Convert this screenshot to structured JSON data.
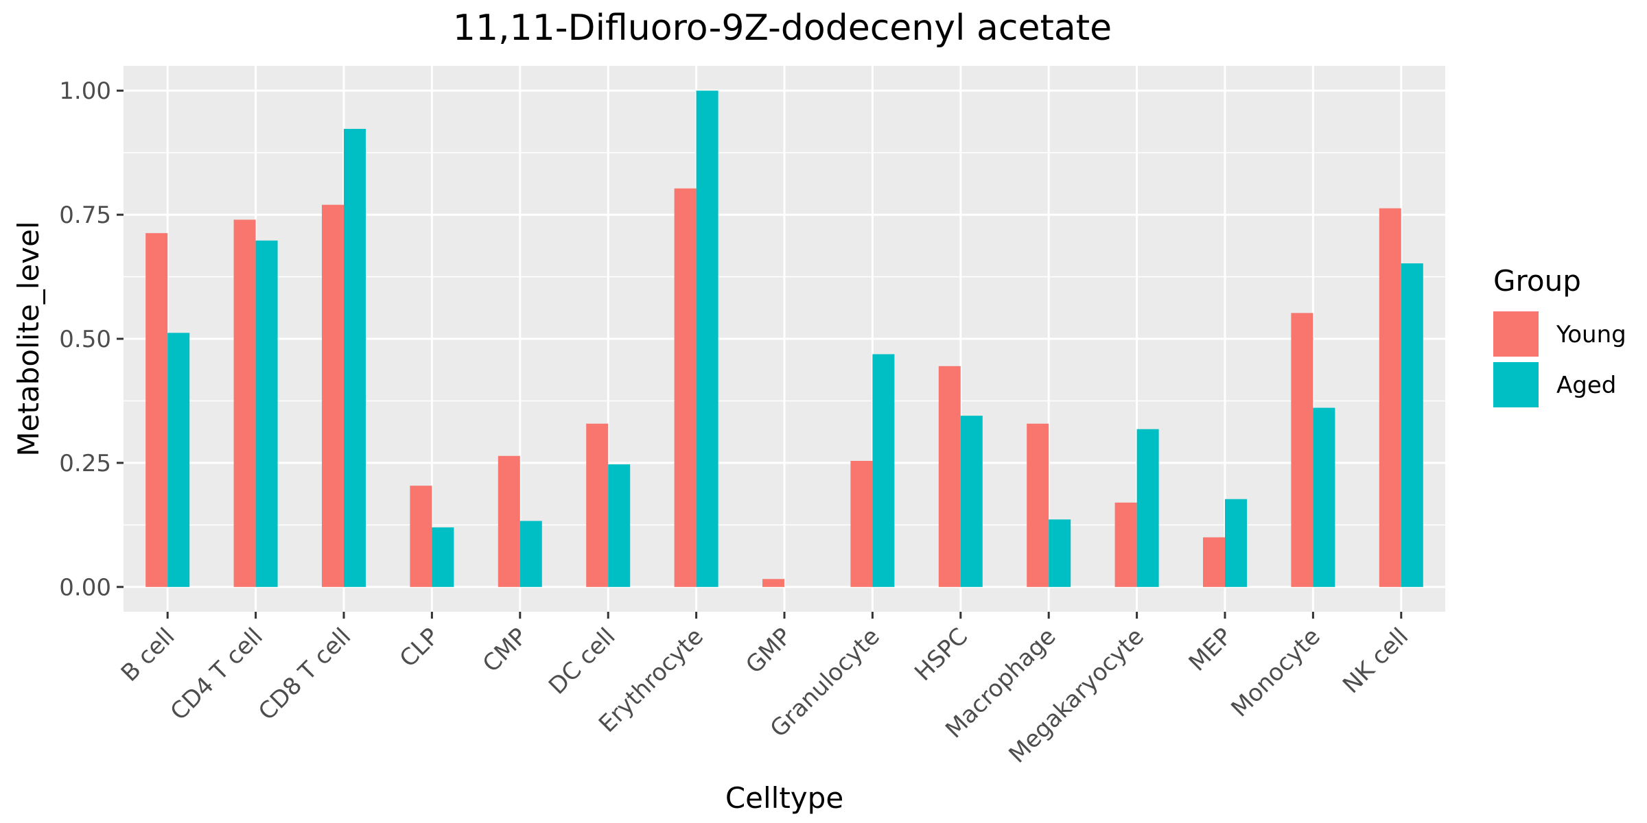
{
  "chart_data": {
    "type": "bar",
    "title": "11,11-Difluoro-9Z-dodecenyl acetate",
    "xlabel": "Celltype",
    "ylabel": "Metabolite_level",
    "ylim": [
      -0.05,
      1.05
    ],
    "yticks": [
      0.0,
      0.25,
      0.5,
      0.75,
      1.0
    ],
    "ytick_labels": [
      "0.00",
      "0.25",
      "0.50",
      "0.75",
      "1.00"
    ],
    "grid": true,
    "legend": {
      "title": "Group",
      "position": "right"
    },
    "categories": [
      "B cell",
      "CD4 T cell",
      "CD8 T cell",
      "CLP",
      "CMP",
      "DC cell",
      "Erythrocyte",
      "GMP",
      "Granulocyte",
      "HSPC",
      "Macrophage",
      "Megakaryocyte",
      "MEP",
      "Monocyte",
      "NK cell"
    ],
    "series": [
      {
        "name": "Young",
        "color": "#F8766D",
        "values": [
          0.713,
          0.74,
          0.77,
          0.204,
          0.264,
          0.329,
          0.803,
          0.016,
          0.254,
          0.445,
          0.329,
          0.17,
          0.1,
          0.552,
          0.763
        ]
      },
      {
        "name": "Aged",
        "color": "#00BFC4",
        "values": [
          0.512,
          0.698,
          0.923,
          0.12,
          0.133,
          0.247,
          1.0,
          0.0,
          0.469,
          0.345,
          0.136,
          0.318,
          0.177,
          0.361,
          0.652
        ]
      }
    ]
  }
}
